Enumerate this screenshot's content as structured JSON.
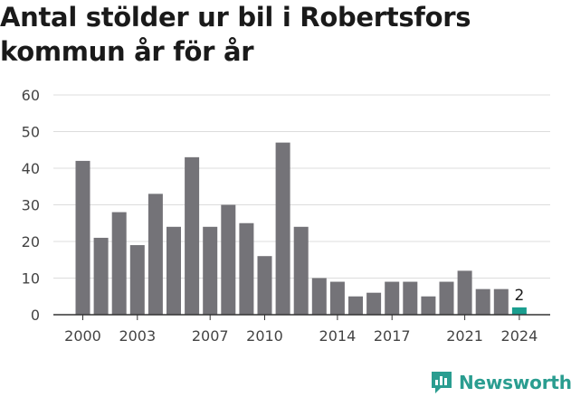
{
  "title": {
    "line1": "Antal stölder ur bil i Robertsfors",
    "line2": "kommun år för år"
  },
  "brand": {
    "name": "Newsworthy",
    "icon": "bar-chart-speech-bubble-icon",
    "color": "#2a9d90"
  },
  "chart_data": {
    "type": "bar",
    "categories": [
      "2000",
      "2001",
      "2002",
      "2003",
      "2004",
      "2005",
      "2006",
      "2007",
      "2008",
      "2009",
      "2010",
      "2011",
      "2012",
      "2013",
      "2014",
      "2015",
      "2016",
      "2017",
      "2018",
      "2019",
      "2020",
      "2021",
      "2022",
      "2023",
      "2024"
    ],
    "values": [
      42,
      21,
      28,
      19,
      33,
      24,
      43,
      24,
      30,
      25,
      16,
      47,
      24,
      10,
      9,
      5,
      6,
      9,
      9,
      5,
      9,
      12,
      7,
      7,
      2
    ],
    "x_tick_labels": [
      "2000",
      "2003",
      "2007",
      "2010",
      "2014",
      "2017",
      "2021",
      "2024"
    ],
    "y_ticks": [
      "0",
      "10",
      "20",
      "30",
      "40",
      "50",
      "60"
    ],
    "ylim": [
      0,
      60
    ],
    "grid": true,
    "bar_color": "#747378",
    "highlight_color": "#1a9e8f",
    "highlight_index": 24,
    "highlight_label": "2",
    "xlabel": "",
    "ylabel": ""
  }
}
